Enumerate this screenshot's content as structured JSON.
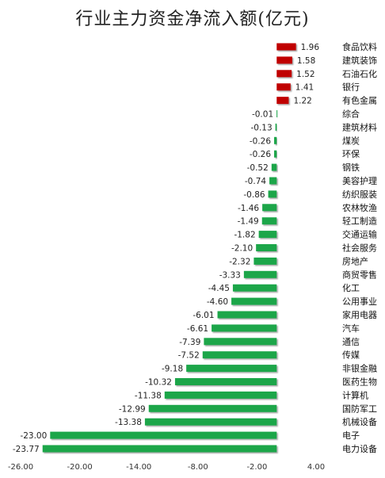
{
  "chart_data": {
    "type": "bar",
    "orientation": "horizontal",
    "title": "行业主力资金净流入额(亿元)",
    "xlabel": "",
    "ylabel": "",
    "xlim": [
      -26.0,
      4.0
    ],
    "x_ticks": [
      "-26.00",
      "-20.00",
      "-14.00",
      "-8.00",
      "-2.00",
      "4.00"
    ],
    "x_tick_values": [
      -26,
      -20,
      -14,
      -8,
      -2,
      4
    ],
    "grid": false,
    "legend": false,
    "colors": {
      "positive": "#c00000",
      "negative": "#1aa64a"
    },
    "categories": [
      "食品饮料",
      "建筑装饰",
      "石油石化",
      "银行",
      "有色金属",
      "综合",
      "建筑材料",
      "煤炭",
      "环保",
      "钢铁",
      "美容护理",
      "纺织服装",
      "农林牧渔",
      "轻工制造",
      "交通运输",
      "社会服务",
      "房地产",
      "商贸零售",
      "化工",
      "公用事业",
      "家用电器",
      "汽车",
      "通信",
      "传媒",
      "非银金融",
      "医药生物",
      "计算机",
      "国防军工",
      "机械设备",
      "电子",
      "电力设备"
    ],
    "values": [
      1.96,
      1.58,
      1.52,
      1.41,
      1.22,
      -0.01,
      -0.13,
      -0.26,
      -0.26,
      -0.52,
      -0.74,
      -0.86,
      -1.46,
      -1.49,
      -1.82,
      -2.1,
      -2.32,
      -3.33,
      -4.45,
      -4.6,
      -6.01,
      -6.61,
      -7.39,
      -7.52,
      -9.18,
      -10.32,
      -11.38,
      -12.99,
      -13.38,
      -23.0,
      -23.77
    ],
    "value_labels": [
      "1.96",
      "1.58",
      "1.52",
      "1.41",
      "1.22",
      "-0.01",
      "-0.13",
      "-0.26",
      "-0.26",
      "-0.52",
      "-0.74",
      "-0.86",
      "-1.46",
      "-1.49",
      "-1.82",
      "-2.10",
      "-2.32",
      "-3.33",
      "-4.45",
      "-4.60",
      "-6.01",
      "-6.61",
      "-7.39",
      "-7.52",
      "-9.18",
      "-10.32",
      "-11.38",
      "-12.99",
      "-13.38",
      "-23.00",
      "-23.77"
    ]
  }
}
